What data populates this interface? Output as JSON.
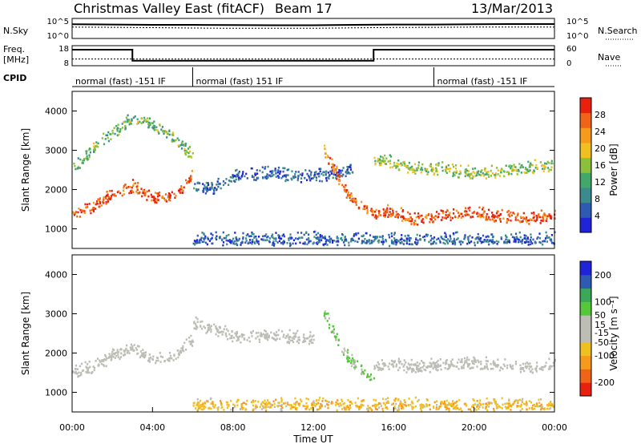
{
  "header": {
    "title": "Christmas Valley East (fitACF)",
    "beam": "Beam 17",
    "date": "13/Mar/2013"
  },
  "strips": {
    "nsky_label": "N.Sky",
    "nsearch_label": "N.Search",
    "freq_label_line1": "Freq.",
    "freq_label_line2": "[MHz]",
    "nave_label": "Nave",
    "cpid_label": "CPID",
    "noise_left_ticks": [
      "10^5",
      "10^0"
    ],
    "noise_right_ticks": [
      "10^5",
      "10^0"
    ],
    "freq_left_ticks": [
      "18",
      "8"
    ],
    "freq_right_ticks": [
      "60",
      "0"
    ],
    "cpid_segments": [
      {
        "start_h": 0,
        "end_h": 6,
        "text": "normal (fast) -151 IF"
      },
      {
        "start_h": 6,
        "end_h": 18,
        "text": "normal (fast) 151 IF"
      },
      {
        "start_h": 18,
        "end_h": 24,
        "text": "normal (fast) -151 IF"
      }
    ]
  },
  "colors": {
    "power": [
      "#1f24d8",
      "#2f5ab4",
      "#3a8a8e",
      "#41a86a",
      "#8cbf3a",
      "#f0c020",
      "#f59a1a",
      "#f06418",
      "#e8200e"
    ],
    "velocity_scale": [
      "#e8200e",
      "#f06418",
      "#f59a1a",
      "#f0c020",
      "#bdbdb5",
      "#bdbdb5",
      "#55c83a",
      "#3aa858",
      "#2f5ab4",
      "#1f24d8"
    ]
  },
  "chart_data": [
    {
      "type": "line",
      "name": "noise",
      "x_unit": "hours UT",
      "series": [
        {
          "name": "N.Sky",
          "x": [
            0,
            2,
            4,
            6,
            8,
            10,
            12,
            14,
            16,
            18,
            20,
            22,
            24
          ],
          "y": [
            3500,
            3000,
            2500,
            2500,
            2200,
            2000,
            2000,
            2500,
            3000,
            3000,
            3500,
            4000,
            4000
          ]
        },
        {
          "name": "N.Search",
          "x": [
            0,
            2,
            4,
            6,
            8,
            10,
            12,
            14,
            16,
            18,
            20,
            22,
            24
          ],
          "y": [
            700,
            600,
            500,
            400,
            350,
            350,
            350,
            450,
            550,
            600,
            700,
            700,
            700
          ]
        }
      ],
      "y_scale": "log",
      "ylim": [
        1,
        100000
      ]
    },
    {
      "type": "line",
      "name": "frequency",
      "x_unit": "hours UT",
      "series": [
        {
          "name": "Freq.",
          "x": [
            0,
            3,
            3,
            15,
            15,
            24
          ],
          "y": [
            16,
            16,
            10.5,
            10.5,
            16,
            16
          ]
        },
        {
          "name": "Nave",
          "x": [
            0,
            24
          ],
          "y": [
            20,
            20
          ]
        }
      ],
      "ylim": [
        8,
        18
      ],
      "ylim_right": [
        0,
        60
      ]
    },
    {
      "type": "heatmap",
      "name": "power",
      "xlabel": "",
      "ylabel": "Slant Range [km]",
      "xlim": [
        0,
        24
      ],
      "ylim": [
        500,
        4500
      ],
      "yticks": [
        1000,
        2000,
        3000,
        4000
      ],
      "colorbar": {
        "label": "Power [dB]",
        "ticks": [
          4,
          8,
          12,
          16,
          20,
          24,
          28
        ],
        "range": [
          0,
          32
        ]
      },
      "features": [
        {
          "name": "near-range F echoes",
          "x": [
            0,
            1,
            2,
            3,
            4,
            5,
            6
          ],
          "y": [
            1400,
            1500,
            1850,
            2050,
            1750,
            1800,
            2300
          ],
          "power_db": 28
        },
        {
          "name": "morning scatter rising",
          "x": [
            0,
            1,
            2,
            3,
            4,
            5,
            6
          ],
          "y": [
            2500,
            3000,
            3400,
            3800,
            3600,
            3300,
            2800
          ],
          "power_db": 14
        },
        {
          "name": "midday blue band",
          "x": [
            6,
            7,
            8,
            9,
            10,
            11,
            12,
            13,
            14
          ],
          "y": [
            2000,
            2000,
            2300,
            2350,
            2400,
            2300,
            2300,
            2400,
            2500
          ],
          "power_db": 6
        },
        {
          "name": "descending evening echoes",
          "x": [
            12.5,
            13,
            13.5,
            14,
            14.5,
            15
          ],
          "y": [
            3000,
            2500,
            2000,
            1700,
            1500,
            1300
          ],
          "power_db": 26
        },
        {
          "name": "evening near-range band",
          "x": [
            15,
            16,
            17,
            18,
            19,
            20,
            21,
            22,
            23,
            24
          ],
          "y": [
            1350,
            1400,
            1200,
            1300,
            1350,
            1350,
            1300,
            1250,
            1250,
            1300
          ],
          "power_db": 28
        },
        {
          "name": "evening upper layer",
          "x": [
            15,
            16,
            17,
            18,
            19,
            20,
            21,
            22,
            23,
            24
          ],
          "y": [
            2700,
            2650,
            2500,
            2500,
            2450,
            2400,
            2400,
            2500,
            2550,
            2600
          ],
          "power_db": 16
        },
        {
          "name": "ground near-range scatter",
          "x": [
            6,
            24
          ],
          "y": [
            700,
            700
          ],
          "power_db": 6
        }
      ]
    },
    {
      "type": "heatmap",
      "name": "velocity",
      "xlabel": "Time UT",
      "ylabel": "Slant Range [km]",
      "xlim": [
        0,
        24
      ],
      "ylim": [
        500,
        4500
      ],
      "xticks": [
        "00:00",
        "04:00",
        "08:00",
        "12:00",
        "16:00",
        "20:00",
        "00:00"
      ],
      "yticks": [
        1000,
        2000,
        3000,
        4000
      ],
      "colorbar": {
        "label": "Velocity [m s⁻¹]",
        "ticks": [
          -200,
          -100,
          -50,
          -15,
          15,
          50,
          100,
          200
        ],
        "range": [
          -250,
          250
        ]
      },
      "features": [
        {
          "name": "near-range ground scatter",
          "x": [
            0,
            1,
            2,
            3,
            4,
            5,
            6
          ],
          "y": [
            1500,
            1600,
            1900,
            2100,
            1800,
            1900,
            2300
          ],
          "velocity": 0
        },
        {
          "name": "midday irregular scatter",
          "x": [
            6,
            7,
            8,
            9,
            10,
            11,
            12
          ],
          "y": [
            2700,
            2600,
            2400,
            2400,
            2450,
            2350,
            2350
          ],
          "velocity": 0
        },
        {
          "name": "descending echoes",
          "x": [
            12.5,
            13,
            13.5,
            14,
            14.5,
            15
          ],
          "y": [
            3000,
            2500,
            2000,
            1700,
            1500,
            1300
          ],
          "velocity": 60
        },
        {
          "name": "evening ground scatter",
          "x": [
            15,
            16,
            17,
            18,
            19,
            20,
            21,
            22,
            23,
            24
          ],
          "y": [
            1600,
            1700,
            1600,
            1650,
            1700,
            1700,
            1650,
            1650,
            1600,
            1650
          ],
          "velocity": 0
        },
        {
          "name": "near-range meteor band",
          "x": [
            6,
            24
          ],
          "y": [
            650,
            650
          ],
          "velocity": -80
        }
      ]
    }
  ]
}
